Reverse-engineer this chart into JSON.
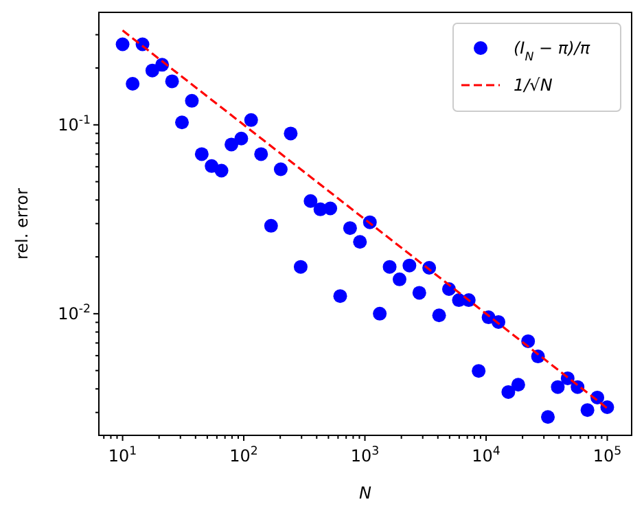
{
  "chart_data": {
    "type": "scatter",
    "xlabel": "N",
    "ylabel": "rel. error",
    "log": "xy",
    "legend": "top right",
    "grid": false,
    "xlim": [
      6.37,
      159000
    ],
    "ylim": [
      0.00227,
      0.394
    ],
    "xticks": [
      {
        "value": 7,
        "label": null
      },
      {
        "value": 8,
        "label": null
      },
      {
        "value": 9,
        "label": null
      },
      {
        "value": 10,
        "label": "10$^{1}$"
      },
      {
        "value": 20,
        "label": null
      },
      {
        "value": 30,
        "label": null
      },
      {
        "value": 40,
        "label": null
      },
      {
        "value": 50,
        "label": null
      },
      {
        "value": 60,
        "label": null
      },
      {
        "value": 70,
        "label": null
      },
      {
        "value": 80,
        "label": null
      },
      {
        "value": 90,
        "label": null
      },
      {
        "value": 100,
        "label": "10$^{2}$"
      },
      {
        "value": 200,
        "label": null
      },
      {
        "value": 300,
        "label": null
      },
      {
        "value": 400,
        "label": null
      },
      {
        "value": 500,
        "label": null
      },
      {
        "value": 600,
        "label": null
      },
      {
        "value": 700,
        "label": null
      },
      {
        "value": 800,
        "label": null
      },
      {
        "value": 900,
        "label": null
      },
      {
        "value": 1000,
        "label": "10$^{3}$"
      },
      {
        "value": 2000,
        "label": null
      },
      {
        "value": 3000,
        "label": null
      },
      {
        "value": 4000,
        "label": null
      },
      {
        "value": 5000,
        "label": null
      },
      {
        "value": 6000,
        "label": null
      },
      {
        "value": 7000,
        "label": null
      },
      {
        "value": 8000,
        "label": null
      },
      {
        "value": 9000,
        "label": null
      },
      {
        "value": 10000,
        "label": "10$^{4}$"
      },
      {
        "value": 20000,
        "label": null
      },
      {
        "value": 30000,
        "label": null
      },
      {
        "value": 40000,
        "label": null
      },
      {
        "value": 50000,
        "label": null
      },
      {
        "value": 60000,
        "label": null
      },
      {
        "value": 70000,
        "label": null
      },
      {
        "value": 80000,
        "label": null
      },
      {
        "value": 90000,
        "label": null
      },
      {
        "value": 100000,
        "label": "10$^{5}$"
      }
    ],
    "yticks": [
      {
        "value": 0.003,
        "label": null
      },
      {
        "value": 0.004,
        "label": null
      },
      {
        "value": 0.005,
        "label": null
      },
      {
        "value": 0.006,
        "label": null
      },
      {
        "value": 0.007,
        "label": null
      },
      {
        "value": 0.008,
        "label": null
      },
      {
        "value": 0.009,
        "label": null
      },
      {
        "value": 0.01,
        "label": "10$^{-2}$"
      },
      {
        "value": 0.02,
        "label": null
      },
      {
        "value": 0.03,
        "label": null
      },
      {
        "value": 0.04,
        "label": null
      },
      {
        "value": 0.05,
        "label": null
      },
      {
        "value": 0.06,
        "label": null
      },
      {
        "value": 0.07,
        "label": null
      },
      {
        "value": 0.08,
        "label": null
      },
      {
        "value": 0.09,
        "label": null
      },
      {
        "value": 0.1,
        "label": "10$^{-1}$"
      },
      {
        "value": 0.2,
        "label": null
      },
      {
        "value": 0.3,
        "label": null
      }
    ],
    "series": [
      {
        "name": "(I$_{N}$ − π)/π",
        "marker": "circle",
        "color": "#0000ff",
        "x": [
          10,
          12.1,
          14.6,
          17.6,
          21.2,
          25.6,
          30.9,
          37.3,
          45.0,
          54.3,
          65.5,
          79.1,
          95.4,
          115,
          139,
          168,
          202,
          244,
          295,
          356,
          429,
          518,
          625,
          754,
          910,
          1099,
          1326,
          1600,
          1931,
          2330,
          2812,
          3393,
          4095,
          4942,
          5964,
          7197,
          8685,
          10481,
          12649,
          15264,
          18421,
          22230,
          26827,
          32375,
          39069,
          47149,
          56899,
          68665,
          82864,
          100000
        ],
        "values": [
          0.267,
          0.165,
          0.267,
          0.194,
          0.208,
          0.17,
          0.103,
          0.134,
          0.07,
          0.0605,
          0.0572,
          0.0787,
          0.0846,
          0.106,
          0.07,
          0.0292,
          0.0582,
          0.09,
          0.0177,
          0.0395,
          0.0357,
          0.0361,
          0.0124,
          0.0284,
          0.024,
          0.0305,
          0.01,
          0.0177,
          0.0152,
          0.018,
          0.0129,
          0.0175,
          0.0098,
          0.0135,
          0.0118,
          0.0118,
          0.00498,
          0.00957,
          0.00904,
          0.00385,
          0.00421,
          0.00715,
          0.00594,
          0.00284,
          0.00409,
          0.00455,
          0.00409,
          0.00309,
          0.0036,
          0.0032
        ]
      },
      {
        "name": "1/√N",
        "type": "line",
        "marker": "none",
        "line_style": "dashed",
        "color": "#ff0000",
        "x": [
          10,
          100,
          1000,
          10000,
          100000
        ],
        "values": [
          0.316,
          0.1,
          0.0316,
          0.01,
          0.00316
        ]
      }
    ]
  }
}
